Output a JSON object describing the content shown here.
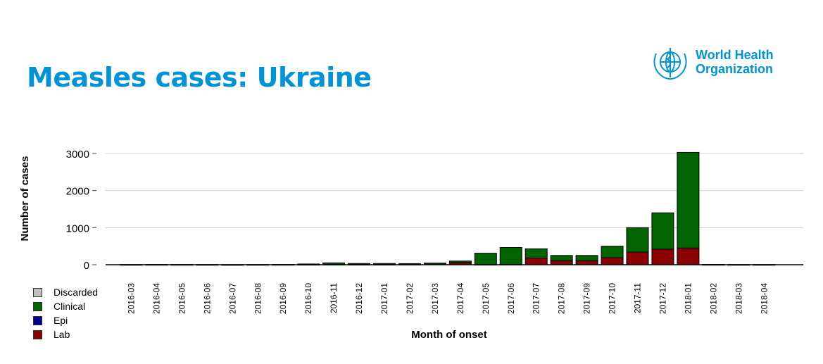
{
  "page_title": "Measles cases: Ukraine",
  "logo": {
    "line1": "World Health",
    "line2": "Organization",
    "icon": "who-emblem-icon"
  },
  "chart_data": {
    "type": "bar",
    "stacked": true,
    "xlabel": "Month of onset",
    "ylabel": "Number of cases",
    "ylim": [
      0,
      3000
    ],
    "yticks": [
      0,
      1000,
      2000,
      3000
    ],
    "grid": true,
    "legend_position": "bottom-left",
    "categories": [
      "2016-03",
      "2016-04",
      "2016-05",
      "2016-06",
      "2016-07",
      "2016-08",
      "2016-09",
      "2016-10",
      "2016-11",
      "2016-12",
      "2017-01",
      "2017-02",
      "2017-03",
      "2017-04",
      "2017-05",
      "2017-06",
      "2017-07",
      "2017-08",
      "2017-09",
      "2017-10",
      "2017-11",
      "2017-12",
      "2018-01",
      "2018-02",
      "2018-03",
      "2018-04"
    ],
    "series": [
      {
        "name": "Lab",
        "color": "#8b0000",
        "values": [
          2,
          3,
          2,
          2,
          1,
          2,
          3,
          5,
          10,
          8,
          8,
          10,
          15,
          60,
          5,
          10,
          180,
          110,
          110,
          190,
          340,
          420,
          450,
          3,
          2,
          2
        ]
      },
      {
        "name": "Epi",
        "color": "#00008b",
        "values": [
          0,
          0,
          0,
          0,
          0,
          0,
          0,
          0,
          0,
          0,
          0,
          0,
          0,
          0,
          0,
          0,
          0,
          0,
          0,
          0,
          0,
          0,
          0,
          0,
          0,
          0
        ]
      },
      {
        "name": "Clinical",
        "color": "#006400",
        "values": [
          3,
          3,
          4,
          3,
          3,
          3,
          4,
          15,
          40,
          25,
          25,
          20,
          30,
          40,
          305,
          455,
          250,
          140,
          140,
          310,
          660,
          980,
          2580,
          5,
          3,
          3
        ]
      },
      {
        "name": "Discarded",
        "color": "#c0c0c0",
        "values": [
          0,
          0,
          0,
          0,
          0,
          0,
          0,
          0,
          0,
          0,
          0,
          0,
          0,
          0,
          0,
          0,
          0,
          0,
          0,
          0,
          0,
          0,
          0,
          0,
          0,
          0
        ]
      }
    ],
    "legend_order": [
      "Discarded",
      "Clinical",
      "Epi",
      "Lab"
    ]
  }
}
